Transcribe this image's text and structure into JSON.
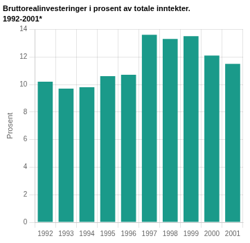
{
  "chart_data": {
    "type": "bar",
    "title": "Bruttorealinvesteringer i prosent av totale inntekter.",
    "subtitle": "1992-2001*",
    "ylabel": "Prosent",
    "categories": [
      "1992",
      "1993",
      "1994",
      "1995",
      "1996",
      "1997",
      "1998",
      "1999",
      "2000",
      "2001"
    ],
    "values": [
      10.2,
      9.7,
      9.8,
      10.6,
      10.7,
      13.6,
      13.3,
      13.5,
      12.1,
      11.5
    ],
    "color": "#1a9a8a",
    "ylim": [
      0,
      14
    ],
    "yticks": [
      0,
      2,
      4,
      6,
      8,
      10,
      12,
      14
    ],
    "grid": true
  }
}
